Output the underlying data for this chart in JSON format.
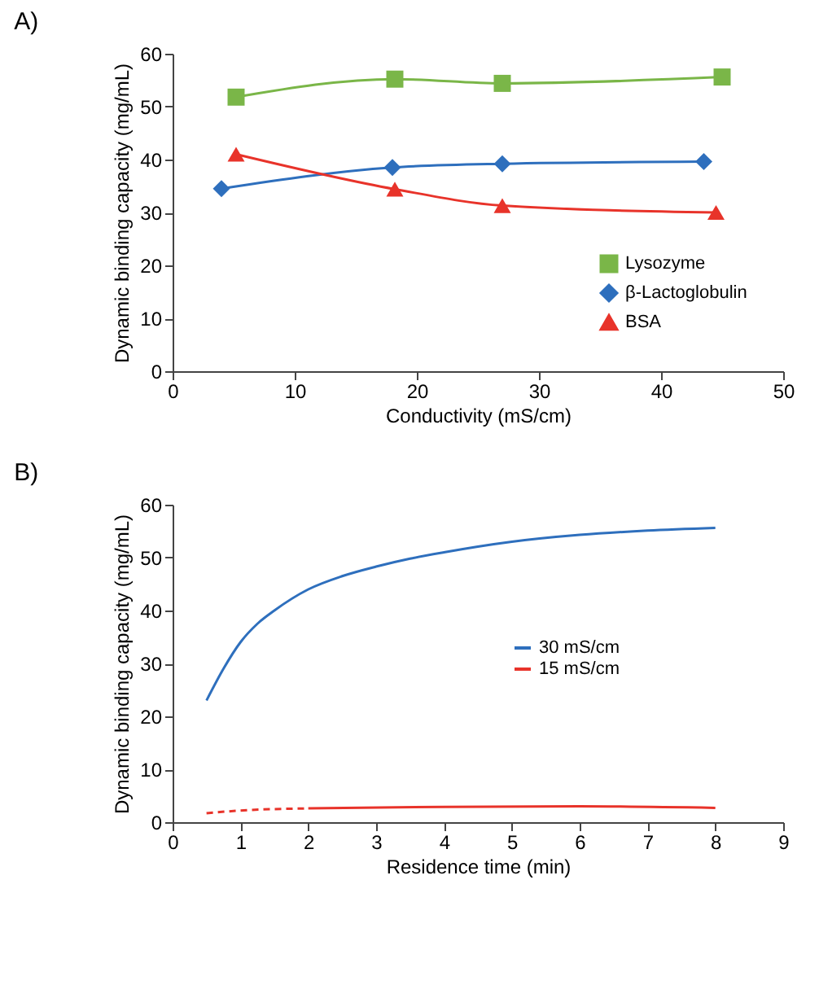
{
  "chart_data": [
    {
      "type": "line",
      "title": "A)",
      "xlabel": "Conductivity (mS/cm)",
      "ylabel": "Dynamic binding capacity (mg/mL)",
      "xlim": [
        0,
        50
      ],
      "xticks": [
        0,
        10,
        20,
        30,
        40,
        50
      ],
      "ylim": [
        0,
        60
      ],
      "yticks": [
        0,
        10,
        20,
        30,
        40,
        50,
        60
      ],
      "grid": false,
      "legend": "bottom right",
      "series": [
        {
          "name": "Lysozyme",
          "color": "#7ab648",
          "marker": "square",
          "x": [
            5.2,
            18.2,
            27,
            45
          ],
          "values": [
            51.8,
            55.2,
            54.4,
            55.6
          ]
        },
        {
          "name": "β-Lactoglobulin",
          "color": "#2e6fbd",
          "marker": "diamond",
          "x": [
            4,
            18,
            27,
            43.5
          ],
          "values": [
            34.5,
            38.5,
            39.2,
            39.6
          ]
        },
        {
          "name": "BSA",
          "color": "#e8332a",
          "marker": "triangle",
          "x": [
            5.2,
            18.2,
            27,
            44.5
          ],
          "values": [
            41,
            34.4,
            31.3,
            30
          ]
        }
      ]
    },
    {
      "type": "line",
      "title": "B)",
      "xlabel": "Residence time (min)",
      "ylabel": "Dynamic binding capacity (mg/mL)",
      "xlim": [
        0,
        9
      ],
      "xticks": [
        0,
        1,
        2,
        3,
        4,
        5,
        6,
        7,
        8,
        9
      ],
      "ylim": [
        0,
        60
      ],
      "yticks": [
        0,
        10,
        20,
        30,
        40,
        50,
        60
      ],
      "grid": false,
      "legend": "right",
      "series": [
        {
          "name": "30 mS/cm",
          "color": "#2e6fbd",
          "x": [
            0.5,
            0.75,
            1,
            1.25,
            1.5,
            2,
            2.5,
            3,
            3.5,
            4,
            5,
            6,
            7,
            8
          ],
          "values": [
            23,
            29,
            34,
            37.5,
            40,
            44,
            46.5,
            48.3,
            49.8,
            51,
            53,
            54.3,
            55.1,
            55.6
          ]
        },
        {
          "name": "15 mS/cm",
          "color": "#e8332a",
          "x": [
            2,
            4,
            6,
            8
          ],
          "values": [
            2.6,
            2.9,
            3,
            2.7
          ]
        },
        {
          "color": "#e8332a",
          "line_style": "dashed",
          "x": [
            0.5,
            1,
            2
          ],
          "values": [
            1.7,
            2.2,
            2.6
          ]
        }
      ]
    }
  ]
}
